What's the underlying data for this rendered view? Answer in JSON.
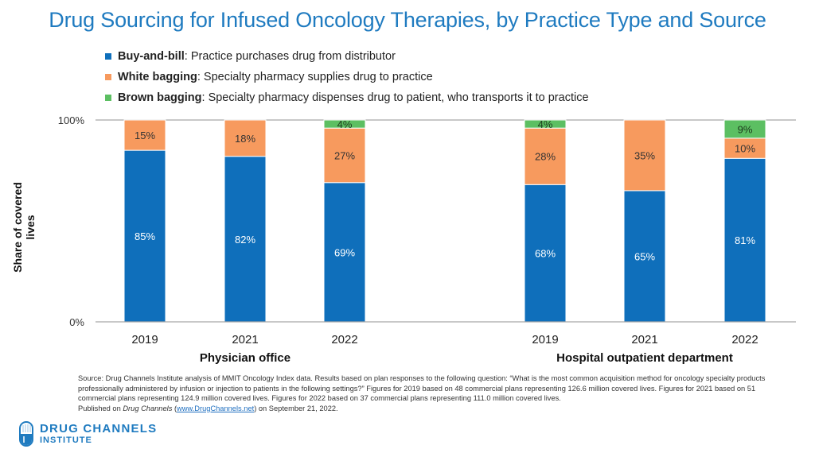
{
  "title": "Drug Sourcing for Infused Oncology Therapies, by Practice Type and Source",
  "legend": [
    {
      "name": "Buy-and-bill",
      "description": ": Practice purchases drug from distributor",
      "color": "#0f6fbb"
    },
    {
      "name": "White bagging",
      "description": ": Specialty pharmacy supplies drug to practice",
      "color": "#f79a5e"
    },
    {
      "name": "Brown bagging",
      "description": ": Specialty pharmacy dispenses drug to patient, who transports it to practice",
      "color": "#5cbf62"
    }
  ],
  "chart_data": {
    "type": "bar",
    "stacked": true,
    "title": "Drug Sourcing for Infused Oncology Therapies, by Practice Type and Source",
    "ylabel": "Share of covered lives",
    "xlabel": "",
    "ylim": [
      0,
      100
    ],
    "yticks": [
      "0%",
      "100%"
    ],
    "groups": [
      {
        "label": "Physician office",
        "categories": [
          "2019",
          "2021",
          "2022"
        ]
      },
      {
        "label": "Hospital outpatient department",
        "categories": [
          "2019",
          "2021",
          "2022"
        ]
      }
    ],
    "categories": [
      "2019",
      "2021",
      "2022",
      "2019",
      "2021",
      "2022"
    ],
    "series": [
      {
        "name": "Buy-and-bill",
        "color": "#0f6fbb",
        "values": [
          85,
          82,
          69,
          68,
          65,
          81
        ],
        "labels": [
          "85%",
          "82%",
          "69%",
          "68%",
          "65%",
          "81%"
        ]
      },
      {
        "name": "White bagging",
        "color": "#f79a5e",
        "values": [
          15,
          18,
          27,
          28,
          35,
          10
        ],
        "labels": [
          "15%",
          "18%",
          "27%",
          "28%",
          "35%",
          "10%"
        ]
      },
      {
        "name": "Brown bagging",
        "color": "#5cbf62",
        "values": [
          0,
          0,
          4,
          4,
          0,
          9
        ],
        "labels": [
          "",
          "",
          "4%",
          "4%",
          "",
          "9%"
        ]
      }
    ],
    "grid": false,
    "legend_position": "top-left"
  },
  "source": {
    "text": "Source: Drug Channels Institute analysis of MMIT Oncology Index data. Results based on plan responses to the following question: “What is the most common acquisition method for oncology specialty products professionally administered by infusion or injection to patients in the following settings?” Figures for 2019 based on 48 commercial plans representing 126.6 million covered lives. Figures for 2021 based on 51 commercial plans representing 124.9 million covered lives. Figures for 2022 based on 37 commercial plans representing 111.0 million covered lives.",
    "published_prefix": "Published on ",
    "published_italic": "Drug Channels",
    "published_open": " (",
    "link_text": "www.DrugChannels.net",
    "published_suffix": ") on September 21, 2022."
  },
  "logo": {
    "line1": "DRUG CHANNELS",
    "line2": "INSTITUTE",
    "icon": "capsule-icon"
  }
}
